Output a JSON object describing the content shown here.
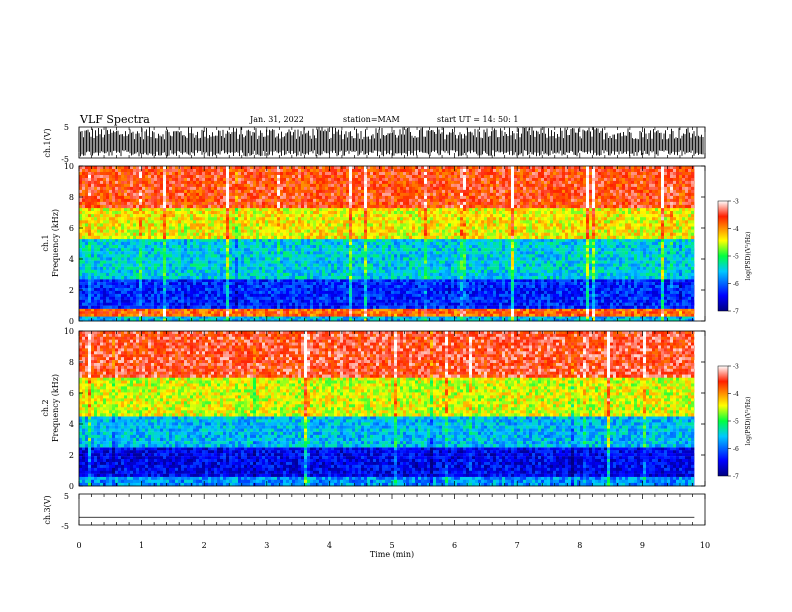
{
  "header": {
    "title": "VLF Spectra",
    "date": "Jan. 31, 2022",
    "station": "station=MAM",
    "start": "start  UT  =   14: 50: 1"
  },
  "chart_data": [
    {
      "type": "line",
      "panel": "ch1-waveform",
      "ylabel": "ch.1(V)",
      "ylim": [
        -5,
        5
      ],
      "ytick_labels": [
        "5",
        "-5"
      ],
      "waveform": "dense burst-like oscillation filling roughly -4 to +5 V across the full record"
    },
    {
      "type": "heatmap",
      "panel": "ch1-spectrogram",
      "ylabel_line1": "ch.1",
      "ylabel_line2": "Frequency  (kHz)",
      "ylim": [
        0,
        10
      ],
      "yticks": [
        "0",
        "2",
        "4",
        "6",
        "8",
        "10"
      ],
      "bands_kHz_to_log_psd": [
        {
          "f_low": 0,
          "f_high": 0.3,
          "log_psd": -5.6
        },
        {
          "f_low": 0.3,
          "f_high": 0.8,
          "log_psd": -3.8
        },
        {
          "f_low": 0.8,
          "f_high": 2.7,
          "log_psd": -6.3
        },
        {
          "f_low": 2.7,
          "f_high": 5.3,
          "log_psd": -5.5
        },
        {
          "f_low": 5.3,
          "f_high": 7.3,
          "log_psd": -4.4
        },
        {
          "f_low": 7.3,
          "f_high": 10,
          "log_psd": -3.6
        }
      ],
      "colorbar": {
        "label": "log(PSD)(V²/Hz)",
        "range": [
          -7,
          -3
        ],
        "ticks": [
          "-3",
          "-4",
          "-5",
          "-6",
          "-7"
        ]
      }
    },
    {
      "type": "heatmap",
      "panel": "ch2-spectrogram",
      "ylabel_line1": "ch.2",
      "ylabel_line2": "Frequency  (kHz)",
      "ylim": [
        0,
        10
      ],
      "yticks": [
        "0",
        "2",
        "4",
        "6",
        "8",
        "10"
      ],
      "bands_kHz_to_log_psd": [
        {
          "f_low": 0,
          "f_high": 0.6,
          "log_psd": -5.8
        },
        {
          "f_low": 0.6,
          "f_high": 2.5,
          "log_psd": -6.5
        },
        {
          "f_low": 2.5,
          "f_high": 4.5,
          "log_psd": -5.6
        },
        {
          "f_low": 4.5,
          "f_high": 7.0,
          "log_psd": -4.5
        },
        {
          "f_low": 7.0,
          "f_high": 10,
          "log_psd": -3.5
        }
      ],
      "colorbar": {
        "label": "log(PSD)(V²/Hz)",
        "range": [
          -7,
          -3
        ],
        "ticks": [
          "-3",
          "-4",
          "-5",
          "-6",
          "-7"
        ]
      }
    },
    {
      "type": "line",
      "panel": "ch3-waveform",
      "ylabel": "ch.3(V)",
      "ylim": [
        -5,
        5
      ],
      "ytick_labels": [
        "5",
        "-5"
      ],
      "flat_value": -2.5
    }
  ],
  "xaxis": {
    "label": "Time  (min)",
    "xlim": [
      0,
      10
    ],
    "data_end": 9.83,
    "ticks": [
      "0",
      "1",
      "2",
      "3",
      "4",
      "5",
      "6",
      "7",
      "8",
      "9",
      "10"
    ]
  }
}
